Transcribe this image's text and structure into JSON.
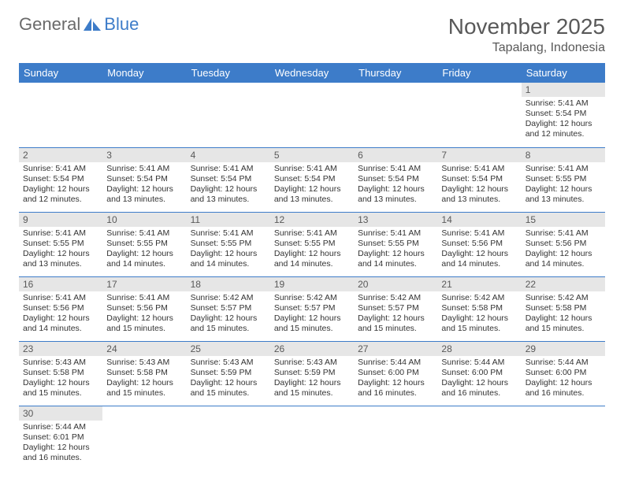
{
  "logo": {
    "general": "General",
    "blue": "Blue"
  },
  "title": "November 2025",
  "location": "Tapalang, Indonesia",
  "colors": {
    "header_bg": "#3d7cc9",
    "header_text": "#ffffff",
    "daynum_bg": "#e6e6e6",
    "text": "#595959",
    "border": "#3d7cc9"
  },
  "weekdays": [
    "Sunday",
    "Monday",
    "Tuesday",
    "Wednesday",
    "Thursday",
    "Friday",
    "Saturday"
  ],
  "first_weekday_index": 6,
  "days": [
    {
      "n": 1,
      "sunrise": "5:41 AM",
      "sunset": "5:54 PM",
      "daylight": "12 hours and 12 minutes."
    },
    {
      "n": 2,
      "sunrise": "5:41 AM",
      "sunset": "5:54 PM",
      "daylight": "12 hours and 12 minutes."
    },
    {
      "n": 3,
      "sunrise": "5:41 AM",
      "sunset": "5:54 PM",
      "daylight": "12 hours and 13 minutes."
    },
    {
      "n": 4,
      "sunrise": "5:41 AM",
      "sunset": "5:54 PM",
      "daylight": "12 hours and 13 minutes."
    },
    {
      "n": 5,
      "sunrise": "5:41 AM",
      "sunset": "5:54 PM",
      "daylight": "12 hours and 13 minutes."
    },
    {
      "n": 6,
      "sunrise": "5:41 AM",
      "sunset": "5:54 PM",
      "daylight": "12 hours and 13 minutes."
    },
    {
      "n": 7,
      "sunrise": "5:41 AM",
      "sunset": "5:54 PM",
      "daylight": "12 hours and 13 minutes."
    },
    {
      "n": 8,
      "sunrise": "5:41 AM",
      "sunset": "5:55 PM",
      "daylight": "12 hours and 13 minutes."
    },
    {
      "n": 9,
      "sunrise": "5:41 AM",
      "sunset": "5:55 PM",
      "daylight": "12 hours and 13 minutes."
    },
    {
      "n": 10,
      "sunrise": "5:41 AM",
      "sunset": "5:55 PM",
      "daylight": "12 hours and 14 minutes."
    },
    {
      "n": 11,
      "sunrise": "5:41 AM",
      "sunset": "5:55 PM",
      "daylight": "12 hours and 14 minutes."
    },
    {
      "n": 12,
      "sunrise": "5:41 AM",
      "sunset": "5:55 PM",
      "daylight": "12 hours and 14 minutes."
    },
    {
      "n": 13,
      "sunrise": "5:41 AM",
      "sunset": "5:55 PM",
      "daylight": "12 hours and 14 minutes."
    },
    {
      "n": 14,
      "sunrise": "5:41 AM",
      "sunset": "5:56 PM",
      "daylight": "12 hours and 14 minutes."
    },
    {
      "n": 15,
      "sunrise": "5:41 AM",
      "sunset": "5:56 PM",
      "daylight": "12 hours and 14 minutes."
    },
    {
      "n": 16,
      "sunrise": "5:41 AM",
      "sunset": "5:56 PM",
      "daylight": "12 hours and 14 minutes."
    },
    {
      "n": 17,
      "sunrise": "5:41 AM",
      "sunset": "5:56 PM",
      "daylight": "12 hours and 15 minutes."
    },
    {
      "n": 18,
      "sunrise": "5:42 AM",
      "sunset": "5:57 PM",
      "daylight": "12 hours and 15 minutes."
    },
    {
      "n": 19,
      "sunrise": "5:42 AM",
      "sunset": "5:57 PM",
      "daylight": "12 hours and 15 minutes."
    },
    {
      "n": 20,
      "sunrise": "5:42 AM",
      "sunset": "5:57 PM",
      "daylight": "12 hours and 15 minutes."
    },
    {
      "n": 21,
      "sunrise": "5:42 AM",
      "sunset": "5:58 PM",
      "daylight": "12 hours and 15 minutes."
    },
    {
      "n": 22,
      "sunrise": "5:42 AM",
      "sunset": "5:58 PM",
      "daylight": "12 hours and 15 minutes."
    },
    {
      "n": 23,
      "sunrise": "5:43 AM",
      "sunset": "5:58 PM",
      "daylight": "12 hours and 15 minutes."
    },
    {
      "n": 24,
      "sunrise": "5:43 AM",
      "sunset": "5:58 PM",
      "daylight": "12 hours and 15 minutes."
    },
    {
      "n": 25,
      "sunrise": "5:43 AM",
      "sunset": "5:59 PM",
      "daylight": "12 hours and 15 minutes."
    },
    {
      "n": 26,
      "sunrise": "5:43 AM",
      "sunset": "5:59 PM",
      "daylight": "12 hours and 15 minutes."
    },
    {
      "n": 27,
      "sunrise": "5:44 AM",
      "sunset": "6:00 PM",
      "daylight": "12 hours and 16 minutes."
    },
    {
      "n": 28,
      "sunrise": "5:44 AM",
      "sunset": "6:00 PM",
      "daylight": "12 hours and 16 minutes."
    },
    {
      "n": 29,
      "sunrise": "5:44 AM",
      "sunset": "6:00 PM",
      "daylight": "12 hours and 16 minutes."
    },
    {
      "n": 30,
      "sunrise": "5:44 AM",
      "sunset": "6:01 PM",
      "daylight": "12 hours and 16 minutes."
    }
  ],
  "labels": {
    "sunrise": "Sunrise:",
    "sunset": "Sunset:",
    "daylight": "Daylight:"
  }
}
